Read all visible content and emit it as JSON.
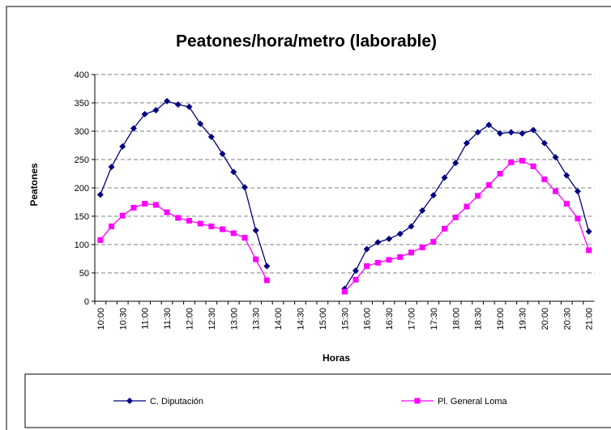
{
  "chart_data": {
    "type": "line",
    "title": "Peatones/hora/metro (laborable)",
    "x_label": "Horas",
    "y_label": "Peatones",
    "categories": [
      "10:00",
      null,
      "10:30",
      null,
      "11:00",
      null,
      "11:30",
      null,
      "12:00",
      null,
      "12:30",
      null,
      "13:00",
      null,
      "13:30",
      null,
      "14:00",
      null,
      "14:30",
      null,
      "15:00",
      null,
      "15:30",
      null,
      "16:00",
      null,
      "16:30",
      null,
      "17:00",
      null,
      "17:30",
      null,
      "18:00",
      null,
      "18:30",
      null,
      "19:00",
      null,
      "19:30",
      null,
      "20:00",
      null,
      "20:30",
      null,
      "21:00"
    ],
    "series": [
      {
        "name": "C. Diputación",
        "color": "#000080",
        "marker": "diamond",
        "values": [
          188,
          237,
          273,
          305,
          330,
          337,
          353,
          347,
          343,
          313,
          290,
          260,
          228,
          201,
          125,
          62,
          null,
          null,
          null,
          null,
          null,
          null,
          22,
          54,
          92,
          104,
          110,
          119,
          132,
          160,
          187,
          218,
          244,
          279,
          298,
          311,
          296,
          298,
          296,
          302,
          279,
          254,
          222,
          194,
          123
        ]
      },
      {
        "name": "Pl. General Loma",
        "color": "#ff00ff",
        "marker": "square",
        "values": [
          108,
          132,
          151,
          165,
          172,
          170,
          157,
          147,
          142,
          137,
          132,
          127,
          120,
          112,
          74,
          37,
          null,
          null,
          null,
          null,
          null,
          null,
          17,
          38,
          62,
          68,
          73,
          78,
          86,
          95,
          105,
          128,
          148,
          167,
          186,
          205,
          225,
          245,
          248,
          238,
          215,
          194,
          172,
          146,
          90
        ]
      }
    ],
    "ylim": [
      0,
      400
    ],
    "yticks": [
      0,
      50,
      100,
      150,
      200,
      250,
      300,
      350,
      400
    ],
    "grid": true,
    "legend": "bottom"
  }
}
